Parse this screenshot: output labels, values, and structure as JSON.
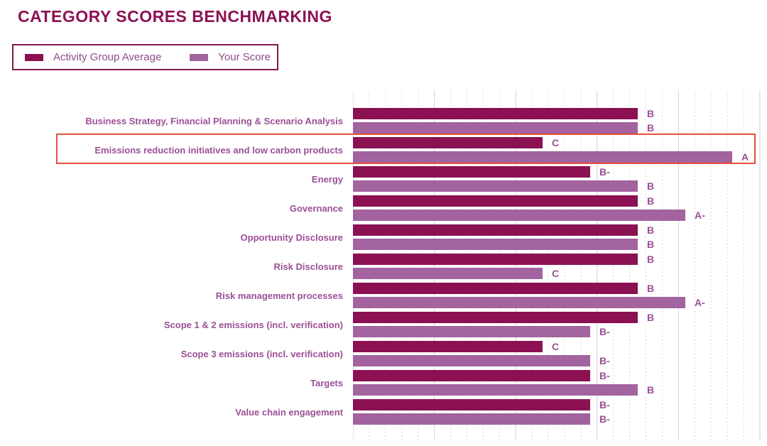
{
  "header": {
    "title": "CATEGORY SCORES BENCHMARKING"
  },
  "legend": {
    "items": [
      {
        "label": "Activity Group Average",
        "color": "#8b1152"
      },
      {
        "label": "Your Score",
        "color": "#a2639e"
      }
    ]
  },
  "chart_data": {
    "type": "bar",
    "orientation": "horizontal",
    "title": "CATEGORY SCORES BENCHMARKING",
    "legend_position": "top-left",
    "grid": true,
    "series_names": [
      "Activity Group Average",
      "Your Score"
    ],
    "grade_scale": {
      "C": 4,
      "B-": 5,
      "B": 6,
      "A-": 7,
      "A": 8
    },
    "axis_range": [
      0,
      8.6
    ],
    "colors": {
      "group_average": "#8b1152",
      "your_score": "#a2639e"
    },
    "highlight_box_color": "#e8503a",
    "categories": [
      {
        "label": "Business Strategy, Financial Planning & Scenario Analysis",
        "group_average": "B",
        "your_score": "B",
        "highlighted": false
      },
      {
        "label": "Emissions reduction initiatives and low carbon products",
        "group_average": "C",
        "your_score": "A",
        "highlighted": true
      },
      {
        "label": "Energy",
        "group_average": "B-",
        "your_score": "B",
        "highlighted": false
      },
      {
        "label": "Governance",
        "group_average": "B",
        "your_score": "A-",
        "highlighted": false
      },
      {
        "label": "Opportunity Disclosure",
        "group_average": "B",
        "your_score": "B",
        "highlighted": false
      },
      {
        "label": "Risk Disclosure",
        "group_average": "B",
        "your_score": "C",
        "highlighted": false
      },
      {
        "label": "Risk management processes",
        "group_average": "B",
        "your_score": "A-",
        "highlighted": false
      },
      {
        "label": "Scope 1 & 2 emissions (incl. verification)",
        "group_average": "B",
        "your_score": "B-",
        "highlighted": false
      },
      {
        "label": "Scope 3 emissions (incl. verification)",
        "group_average": "C",
        "your_score": "B-",
        "highlighted": false
      },
      {
        "label": "Targets",
        "group_average": "B-",
        "your_score": "B",
        "highlighted": false
      },
      {
        "label": "Value chain engagement",
        "group_average": "B-",
        "your_score": "B-",
        "highlighted": false
      }
    ]
  }
}
